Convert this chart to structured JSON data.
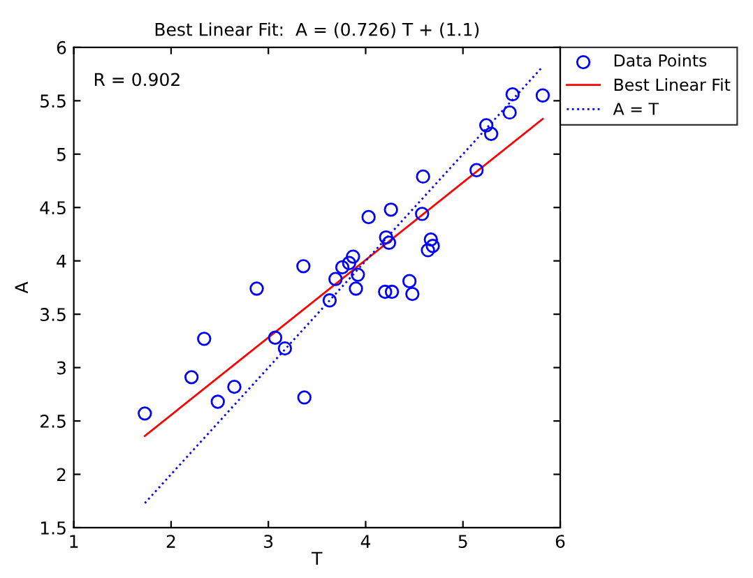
{
  "chart_data": {
    "type": "scatter",
    "title": "Best Linear Fit:  A = (0.726) T + (1.1)",
    "xlabel": "T",
    "ylabel": "A",
    "xlim": [
      1,
      6
    ],
    "xticks": [
      1,
      2,
      3,
      4,
      5,
      6
    ],
    "ylim": [
      1.5,
      6
    ],
    "yticks": [
      1.5,
      2,
      2.5,
      3,
      3.5,
      4,
      4.5,
      5,
      5.5,
      6
    ],
    "grid": false,
    "legend": "top right",
    "annotations": [
      {
        "text": "R = 0.902"
      }
    ],
    "series": [
      {
        "name": "Data Points",
        "marker": "circle",
        "color": "#0000ff",
        "x": [
          1.73,
          2.21,
          2.34,
          2.48,
          2.65,
          2.88,
          3.07,
          3.17,
          3.36,
          3.37,
          3.63,
          3.69,
          3.76,
          3.83,
          3.87,
          3.92,
          3.9,
          4.03,
          4.21,
          4.24,
          4.26,
          4.2,
          4.27,
          4.45,
          4.48,
          4.59,
          4.58,
          4.67,
          4.69,
          4.64,
          5.14,
          5.24,
          5.29,
          5.48,
          5.51,
          5.82
        ],
        "values": [
          2.57,
          2.91,
          3.27,
          2.68,
          2.82,
          3.74,
          3.28,
          3.18,
          3.95,
          2.72,
          3.63,
          3.83,
          3.94,
          3.98,
          4.04,
          3.87,
          3.74,
          4.41,
          4.22,
          4.17,
          4.48,
          3.71,
          3.71,
          3.81,
          3.69,
          4.79,
          4.44,
          4.2,
          4.14,
          4.1,
          4.85,
          5.27,
          5.19,
          5.39,
          5.56,
          5.55
        ]
      },
      {
        "name": "Best Linear Fit",
        "type": "line",
        "marker": "none",
        "line_style": "solid",
        "color": "#ff0000",
        "x": [
          1.73,
          5.82
        ],
        "values": [
          2.36,
          5.33
        ]
      },
      {
        "name": "A = T",
        "type": "line",
        "marker": "none",
        "line_style": "dotted",
        "color": "#0000ff",
        "x": [
          1.73,
          5.82
        ],
        "values": [
          1.73,
          5.82
        ]
      }
    ]
  }
}
